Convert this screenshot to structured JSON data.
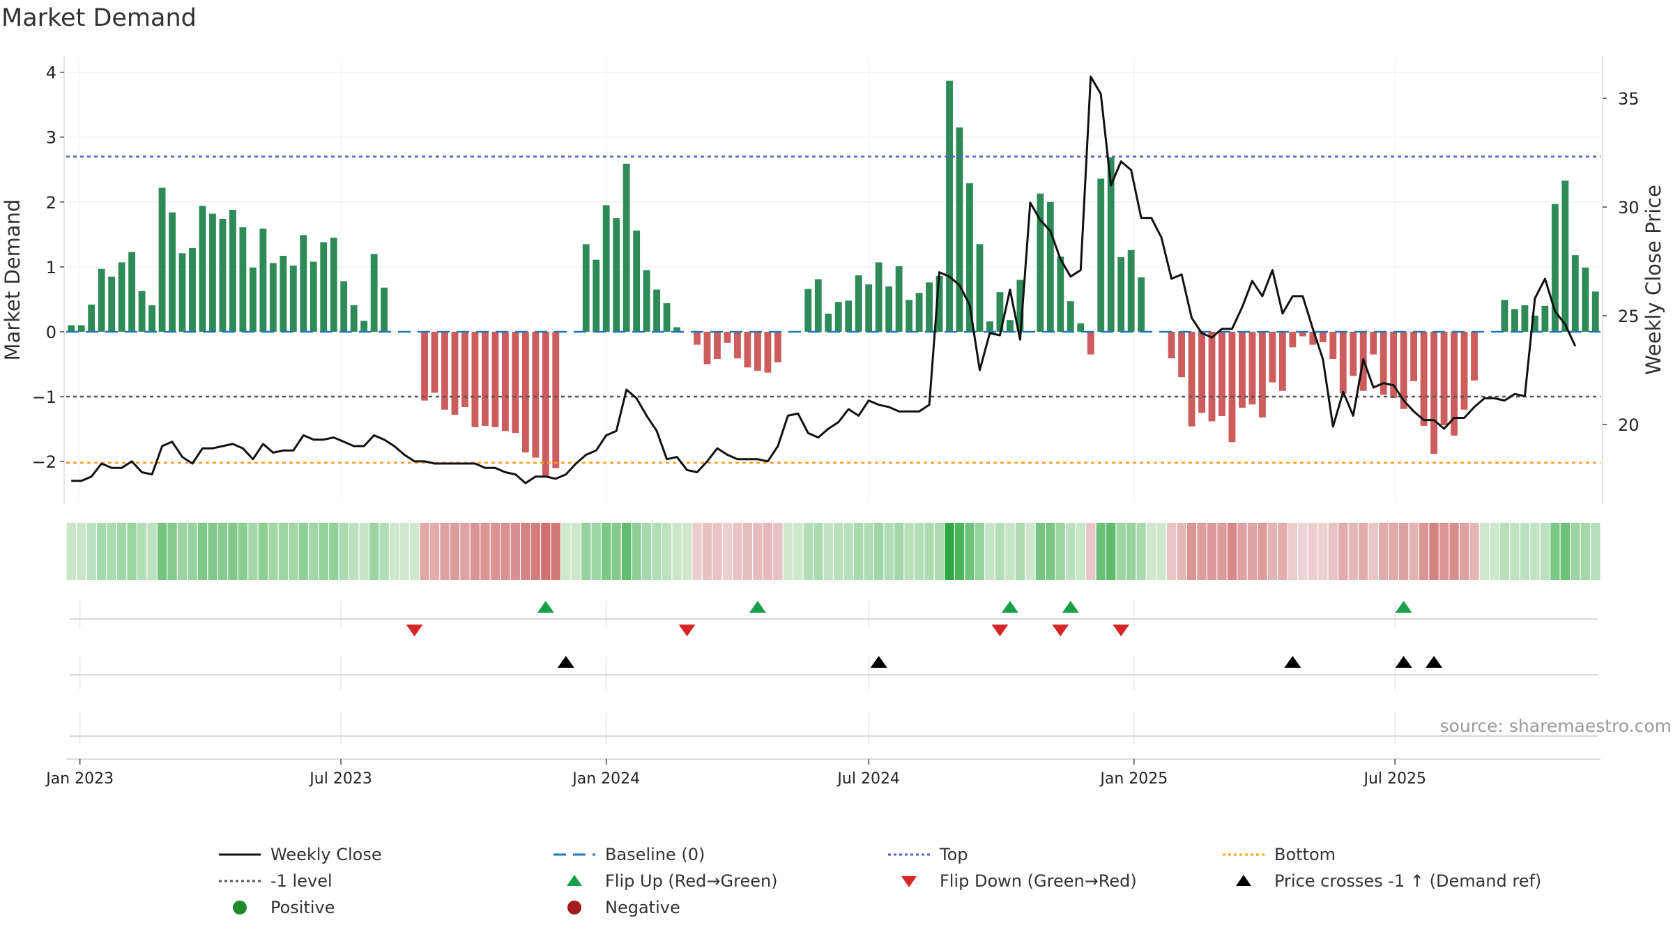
{
  "title": "Market Demand",
  "source": "source: sharemaestro.com",
  "colors": {
    "positive_bar": "#2e8b57",
    "negative_bar": "#cd5c5c",
    "price_line": "#111111",
    "baseline": "#1f77b4",
    "top_line": "#5b5bd6",
    "bottom_line": "#ff9f1a",
    "minus1_line": "#555555",
    "flip_up": "#1aa04a",
    "flip_down": "#d62728",
    "cross": "#000000"
  },
  "chart_data": {
    "type": "bar+line",
    "title": "Market Demand",
    "ylabel_left": "Market Demand",
    "ylabel_right": "Weekly Close Price",
    "ylim_left": [
      -2.6,
      4.2
    ],
    "yticks_left": [
      "4",
      "3",
      "2",
      "1",
      "0",
      "−1",
      "−2"
    ],
    "ytick_values_left": [
      4,
      3,
      2,
      1,
      0,
      -1,
      -2
    ],
    "ylim_right": [
      16.5,
      36.8
    ],
    "yticks_right": [
      "35",
      "30",
      "25",
      "20"
    ],
    "ytick_values_right": [
      35,
      30,
      25,
      20
    ],
    "start_date": "2022-12-26",
    "x_tick_labels": [
      "Jan 2023",
      "Jul 2023",
      "Jan 2024",
      "Jul 2024",
      "Jan 2025",
      "Jul 2025"
    ],
    "x_tick_dates": [
      "2023-01-01",
      "2023-07-01",
      "2024-01-01",
      "2024-07-01",
      "2025-01-01",
      "2025-07-01"
    ],
    "reference_lines": {
      "top": 2.7,
      "bottom": -2.02,
      "minus1": -1.0,
      "baseline": 0
    },
    "demand": [
      0.1,
      0.1,
      0.42,
      0.97,
      0.85,
      1.07,
      1.23,
      0.63,
      0.41,
      2.22,
      1.84,
      1.21,
      1.29,
      1.94,
      1.82,
      1.74,
      1.88,
      1.61,
      0.99,
      1.59,
      1.06,
      1.17,
      1.02,
      1.49,
      1.08,
      1.38,
      1.45,
      0.78,
      0.41,
      0.17,
      1.2,
      0.68,
      0,
      0,
      0,
      -1.06,
      -0.94,
      -1.2,
      -1.28,
      -1.16,
      -1.47,
      -1.45,
      -1.47,
      -1.53,
      -1.56,
      -1.86,
      -1.94,
      -2.23,
      -2.1,
      0,
      0,
      1.35,
      1.11,
      1.95,
      1.75,
      2.59,
      1.56,
      0.95,
      0.65,
      0.44,
      0.07,
      0,
      -0.2,
      -0.5,
      -0.42,
      -0.17,
      -0.41,
      -0.55,
      -0.6,
      -0.63,
      -0.47,
      0,
      0,
      0.66,
      0.81,
      0.28,
      0.46,
      0.48,
      0.87,
      0.73,
      1.07,
      0.7,
      1.01,
      0.49,
      0.6,
      0.76,
      0.86,
      3.87,
      3.15,
      2.29,
      1.35,
      0.16,
      0.61,
      0.18,
      0.8,
      0,
      2.13,
      2.0,
      1.16,
      0.47,
      0.13,
      -0.35,
      2.36,
      2.69,
      1.15,
      1.26,
      0.84,
      0,
      0,
      -0.41,
      -0.7,
      -1.46,
      -1.25,
      -1.38,
      -1.3,
      -1.7,
      -1.17,
      -1.12,
      -1.32,
      -0.78,
      -0.91,
      -0.24,
      -0.07,
      -0.2,
      -0.16,
      -0.42,
      -0.95,
      -0.68,
      -0.91,
      -0.35,
      -0.97,
      -1.02,
      -1.19,
      -0.76,
      -1.45,
      -1.88,
      -1.44,
      -1.6,
      -1.2,
      -0.75,
      0,
      0,
      0.49,
      0.35,
      0.41,
      0.25,
      0.4,
      1.97,
      2.33,
      1.18,
      0.99,
      0.62
    ],
    "price": [
      17.4,
      17.4,
      17.6,
      18.2,
      18.0,
      18.0,
      18.3,
      17.8,
      17.7,
      19.0,
      19.2,
      18.5,
      18.2,
      18.9,
      18.9,
      19.0,
      19.1,
      18.9,
      18.4,
      19.1,
      18.7,
      18.8,
      18.8,
      19.5,
      19.3,
      19.3,
      19.4,
      19.2,
      19.0,
      19.0,
      19.5,
      19.3,
      19.0,
      18.6,
      18.3,
      18.3,
      18.2,
      18.2,
      18.2,
      18.2,
      18.2,
      18.0,
      18.0,
      17.8,
      17.7,
      17.3,
      17.6,
      17.6,
      17.5,
      17.7,
      18.2,
      18.6,
      18.8,
      19.5,
      19.7,
      21.6,
      21.2,
      20.4,
      19.7,
      18.4,
      18.5,
      17.9,
      17.8,
      18.3,
      18.9,
      18.6,
      18.4,
      18.4,
      18.4,
      18.3,
      19.0,
      20.4,
      20.5,
      19.6,
      19.4,
      19.8,
      20.1,
      20.7,
      20.4,
      21.1,
      20.9,
      20.8,
      20.6,
      20.6,
      20.6,
      20.9,
      27.0,
      26.8,
      26.4,
      25.5,
      22.5,
      24.2,
      24.1,
      26.2,
      23.9,
      30.2,
      29.4,
      28.9,
      27.6,
      26.8,
      27.1,
      36.0,
      35.2,
      31.0,
      32.1,
      31.7,
      29.5,
      29.5,
      28.6,
      26.7,
      26.9,
      24.9,
      24.2,
      24.0,
      24.4,
      24.4,
      25.4,
      26.6,
      25.9,
      27.1,
      25.1,
      25.9,
      25.9,
      24.4,
      23.0,
      19.9,
      21.5,
      20.4,
      23.0,
      21.7,
      21.9,
      21.8,
      21.1,
      20.6,
      20.2,
      20.2,
      19.8,
      20.3,
      20.3,
      20.8,
      21.2,
      21.2,
      21.1,
      21.4,
      21.3,
      25.8,
      26.7,
      25.2,
      24.6,
      23.6
    ],
    "flip_up": [
      "2023-11-20",
      "2024-04-15",
      "2024-10-07",
      "2024-11-18",
      "2025-07-07"
    ],
    "flip_down": [
      "2023-08-21",
      "2024-02-26",
      "2024-09-30",
      "2024-11-11",
      "2024-12-23"
    ],
    "price_crosses": [
      "2023-12-04",
      "2024-07-08",
      "2025-04-21",
      "2025-07-07",
      "2025-07-28"
    ]
  },
  "legend": [
    {
      "label": "Weekly Close",
      "icon": "solid-black-line"
    },
    {
      "label": "Baseline (0)",
      "icon": "dashed-blue-line"
    },
    {
      "label": "Top",
      "icon": "dotted-purple-line"
    },
    {
      "label": "Bottom",
      "icon": "dotted-orange-line"
    },
    {
      "label": "-1 level",
      "icon": "dotted-gray-line"
    },
    {
      "label": "Flip Up (Red→Green)",
      "icon": "green-up-triangle"
    },
    {
      "label": "Flip Down (Green→Red)",
      "icon": "red-down-triangle"
    },
    {
      "label": "Price crosses -1 ↑ (Demand ref)",
      "icon": "black-up-triangle"
    },
    {
      "label": "Positive",
      "icon": "green-circle"
    },
    {
      "label": "Negative",
      "icon": "red-circle"
    }
  ]
}
